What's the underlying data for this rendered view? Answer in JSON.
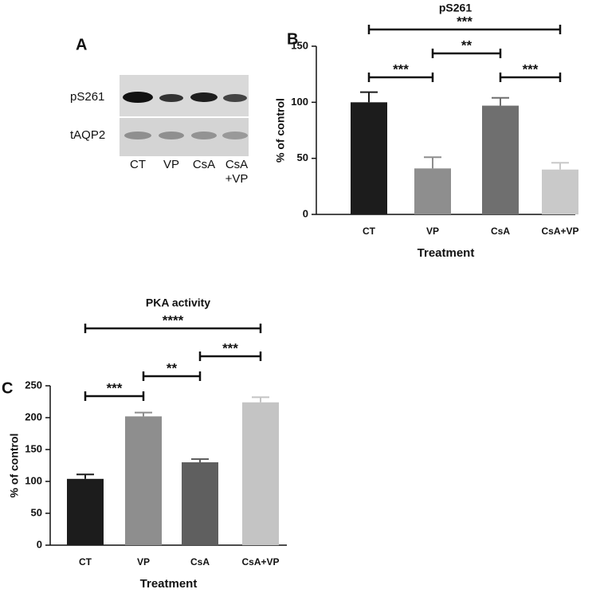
{
  "blot": {
    "panel": "A",
    "rows": [
      "pS261",
      "tAQP2"
    ],
    "lanes": [
      [
        "CT"
      ],
      [
        "VP"
      ],
      [
        "CsA"
      ],
      [
        "CsA",
        "+VP"
      ]
    ]
  },
  "chart_data": [
    {
      "type": "bar",
      "panel": "B",
      "title": "pS261",
      "y_label": "% of control",
      "x_label": "Treatment",
      "categories": [
        "CT",
        "VP",
        "CsA",
        "CsA+VP"
      ],
      "values": [
        100,
        41,
        97,
        40
      ],
      "errors": [
        9,
        10,
        7,
        6
      ],
      "colors": [
        "#1c1c1c",
        "#8e8e8e",
        "#6f6f6f",
        "#c9c9c9"
      ],
      "ylim": [
        0,
        150
      ],
      "yticks": [
        0,
        50,
        100,
        150
      ],
      "comparisons": [
        {
          "from": 0,
          "to": 1,
          "label": "***"
        },
        {
          "from": 1,
          "to": 2,
          "label": "**"
        },
        {
          "from": 2,
          "to": 3,
          "label": "***"
        },
        {
          "from": 0,
          "to": 3,
          "label": "***"
        }
      ]
    },
    {
      "type": "bar",
      "panel": "C",
      "title": "PKA activity",
      "y_label": "% of control",
      "x_label": "Treatment",
      "categories": [
        "CT",
        "VP",
        "CsA",
        "CsA+VP"
      ],
      "values": [
        104,
        202,
        130,
        224
      ],
      "errors": [
        7,
        6,
        5,
        8
      ],
      "colors": [
        "#1c1c1c",
        "#8e8e8e",
        "#5f5f5f",
        "#c4c4c4"
      ],
      "ylim": [
        0,
        250
      ],
      "yticks": [
        0,
        50,
        100,
        150,
        200,
        250
      ],
      "comparisons": [
        {
          "from": 0,
          "to": 1,
          "label": "***"
        },
        {
          "from": 1,
          "to": 2,
          "label": "**"
        },
        {
          "from": 2,
          "to": 3,
          "label": "***"
        },
        {
          "from": 0,
          "to": 3,
          "label": "****"
        }
      ]
    }
  ]
}
